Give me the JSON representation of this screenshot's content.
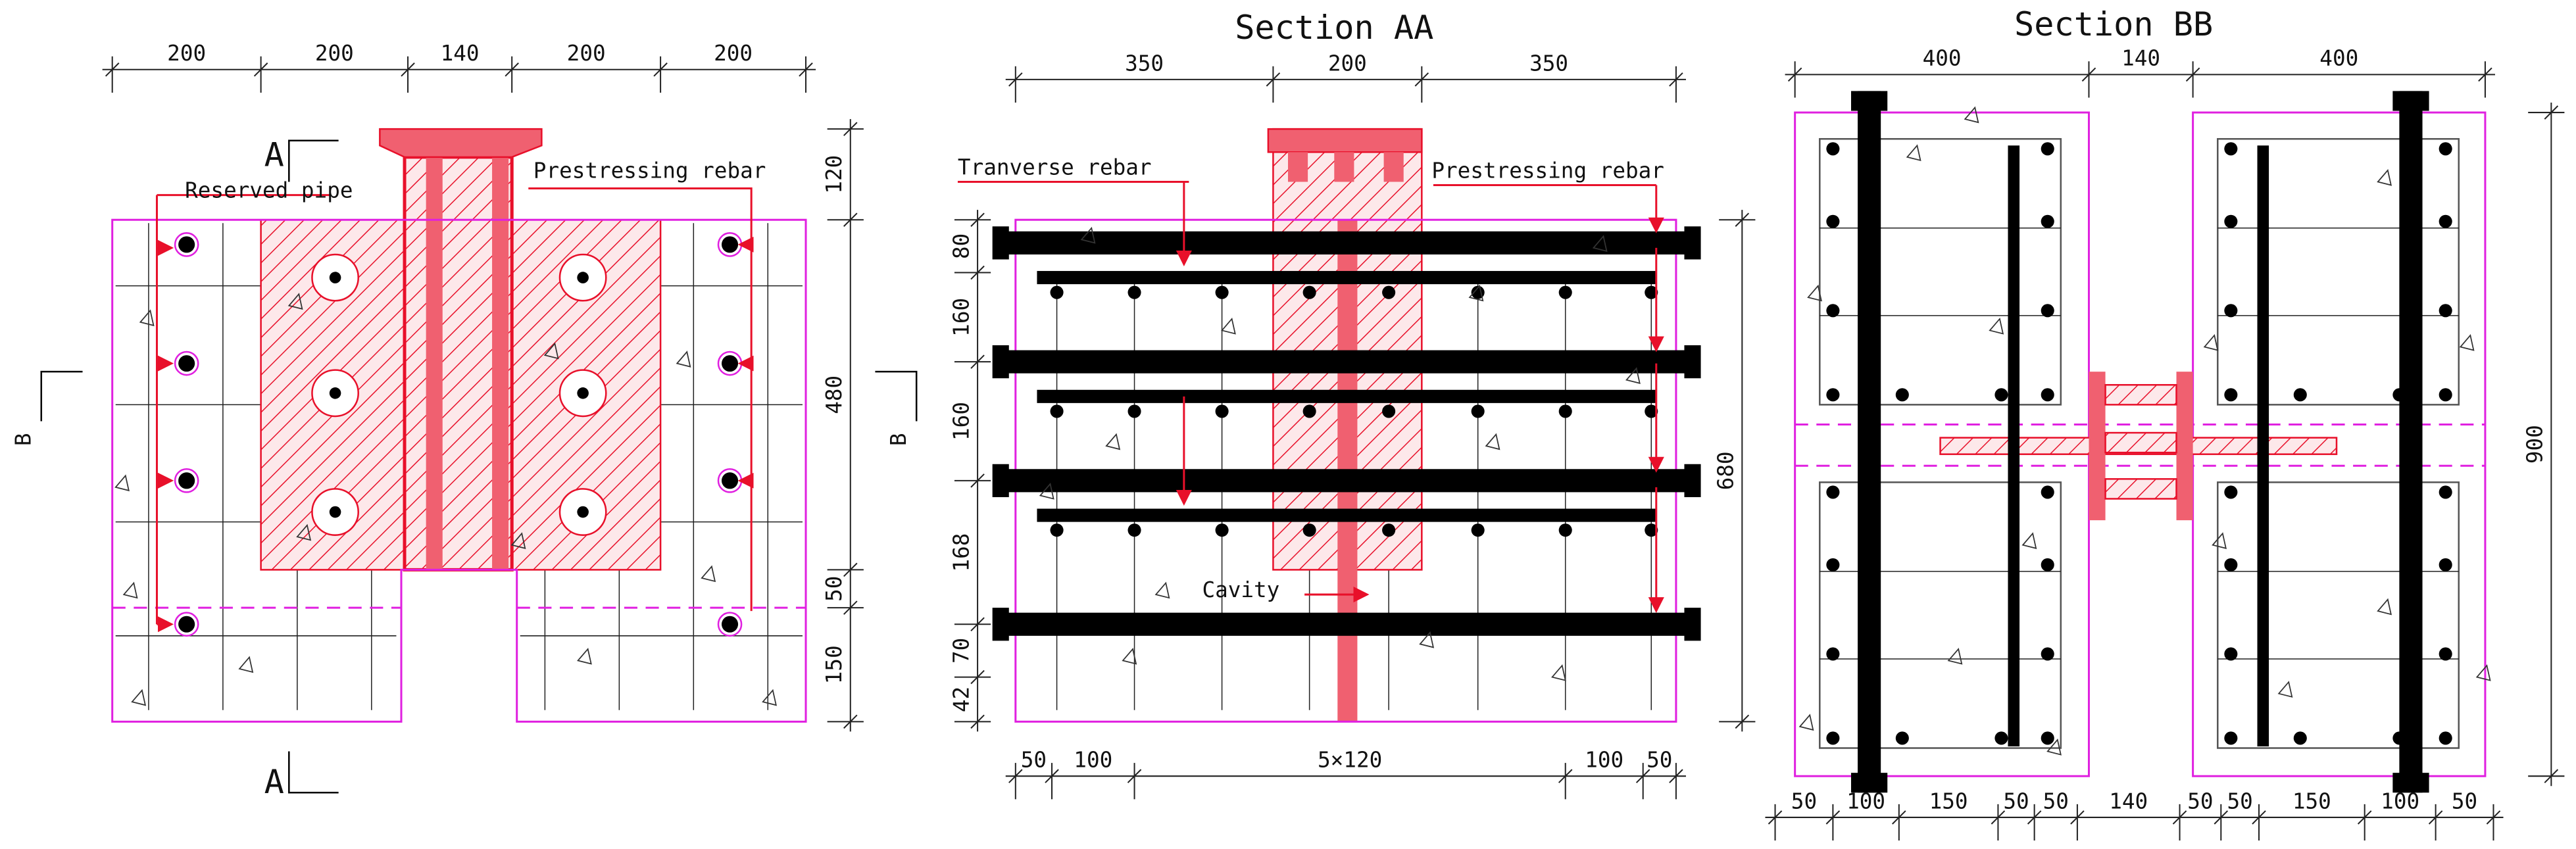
{
  "panels": [
    {
      "dims_top": [
        "200",
        "200",
        "140",
        "200",
        "200"
      ],
      "dims_right": [
        "120",
        "480",
        "50",
        "150"
      ],
      "section_marks": [
        "A",
        "A",
        "B",
        "B"
      ],
      "labels": [
        "Reserved pipe",
        "Prestressing rebar"
      ]
    },
    {
      "title": "Section AA",
      "dims_top": [
        "350",
        "200",
        "350"
      ],
      "dims_left": [
        "80",
        "160",
        "160",
        "168",
        "70",
        "42"
      ],
      "dims_right": [
        "680"
      ],
      "dims_bottom": [
        "50",
        "100",
        "5×120",
        "100",
        "50"
      ],
      "labels": [
        "Tranverse rebar",
        "Prestressing rebar",
        "Cavity"
      ]
    },
    {
      "title": "Section BB",
      "dims_top": [
        "400",
        "140",
        "400"
      ],
      "dims_right": [
        "900"
      ],
      "dims_bottom": [
        "50",
        "100",
        "150",
        "50",
        "50",
        "140",
        "50",
        "50",
        "150",
        "100",
        "50"
      ]
    }
  ]
}
